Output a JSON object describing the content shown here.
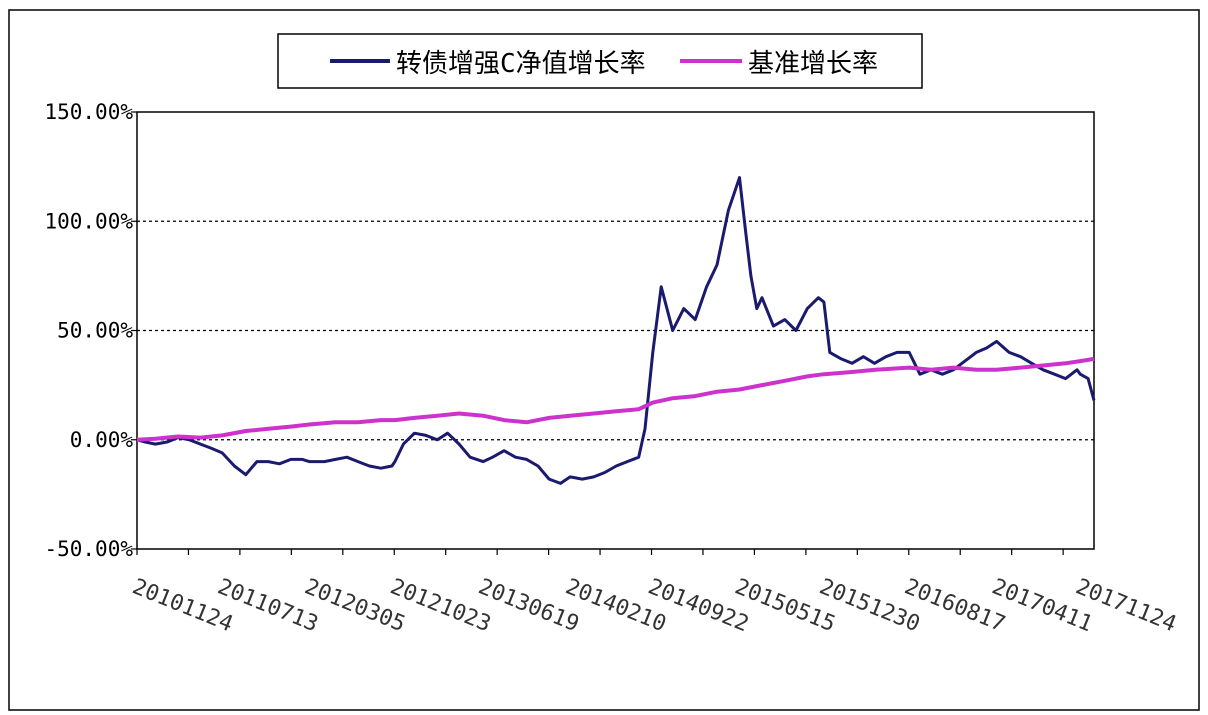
{
  "chart_data": {
    "type": "line",
    "title": "",
    "xlabel": "",
    "ylabel": "",
    "ylim": [
      -50,
      150
    ],
    "y_ticks": [
      "150.00%",
      "100.00%",
      "50.00%",
      "0.00%",
      "-50.00%"
    ],
    "y_tick_values": [
      150,
      100,
      50,
      0,
      -50
    ],
    "gridlines": [
      100,
      50,
      0
    ],
    "grid": "horizontal dotted",
    "legend_position": "top-center",
    "x_tick_labels": [
      "20101124",
      "20110713",
      "20120305",
      "20121023",
      "20130619",
      "20140210",
      "20140922",
      "20150515",
      "20151230",
      "20160817",
      "20170411",
      "20171124"
    ],
    "x_range": [
      "20101124",
      "20171231"
    ],
    "series": [
      {
        "name": "转债增强C净值增长率",
        "color": "#1a1a6e",
        "x": [
          "20101124",
          "20101215",
          "20110113",
          "20110215",
          "20110315",
          "20110415",
          "20110515",
          "20110615",
          "20110713",
          "20110815",
          "20110915",
          "20111015",
          "20111115",
          "20111215",
          "20120115",
          "20120215",
          "20120305",
          "20120415",
          "20120515",
          "20120615",
          "20120715",
          "20120815",
          "20120915",
          "20121015",
          "20121023",
          "20121115",
          "20121215",
          "20130115",
          "20130215",
          "20130315",
          "20130415",
          "20130515",
          "20130619",
          "20130715",
          "20130815",
          "20130915",
          "20131015",
          "20131115",
          "20131215",
          "20140115",
          "20140210",
          "20140315",
          "20140415",
          "20140515",
          "20140615",
          "20140715",
          "20140815",
          "20140901",
          "20140922",
          "20141015",
          "20141115",
          "20141215",
          "20150115",
          "20150215",
          "20150315",
          "20150415",
          "20150515",
          "20150601",
          "20150615",
          "20150701",
          "20150715",
          "20150815",
          "20150915",
          "20151015",
          "20151115",
          "20151215",
          "20151230",
          "20160115",
          "20160215",
          "20160315",
          "20160415",
          "20160515",
          "20160615",
          "20160715",
          "20160817",
          "20160915",
          "20161015",
          "20161115",
          "20161215",
          "20170115",
          "20170215",
          "20170315",
          "20170411",
          "20170515",
          "20170615",
          "20170715",
          "20170815",
          "20170915",
          "20171015",
          "20171115",
          "20171124",
          "20171215",
          "20171231"
        ],
        "values": [
          0,
          -1,
          -2,
          -1,
          1,
          0,
          -2,
          -4,
          -6,
          -12,
          -16,
          -10,
          -10,
          -11,
          -9,
          -9,
          -10,
          -10,
          -9,
          -8,
          -10,
          -12,
          -13,
          -12,
          -10,
          -2,
          3,
          2,
          0,
          3,
          -2,
          -8,
          -10,
          -8,
          -5,
          -8,
          -9,
          -12,
          -18,
          -20,
          -17,
          -18,
          -17,
          -15,
          -12,
          -10,
          -8,
          5,
          40,
          70,
          50,
          60,
          55,
          70,
          80,
          105,
          120,
          95,
          75,
          60,
          65,
          52,
          55,
          50,
          60,
          65,
          63,
          40,
          37,
          35,
          38,
          35,
          38,
          40,
          40,
          30,
          32,
          30,
          32,
          36,
          40,
          42,
          45,
          40,
          38,
          35,
          32,
          30,
          28,
          32,
          30,
          28,
          18
        ]
      },
      {
        "name": "基准增长率",
        "color": "#cc33cc",
        "x": [
          "20101124",
          "20110113",
          "20110315",
          "20110515",
          "20110713",
          "20110915",
          "20111115",
          "20120115",
          "20120305",
          "20120515",
          "20120715",
          "20120915",
          "20121023",
          "20121215",
          "20130215",
          "20130415",
          "20130619",
          "20130815",
          "20131015",
          "20131215",
          "20140210",
          "20140415",
          "20140615",
          "20140815",
          "20140922",
          "20141115",
          "20150115",
          "20150315",
          "20150515",
          "20150715",
          "20150915",
          "20151115",
          "20151230",
          "20160315",
          "20160517",
          "20160817",
          "20161015",
          "20161215",
          "20170215",
          "20170411",
          "20170615",
          "20170815",
          "20171015",
          "20171124",
          "20171231"
        ],
        "values": [
          0,
          0.5,
          1.5,
          1,
          2,
          4,
          5,
          6,
          7,
          8,
          8,
          9,
          9,
          10,
          11,
          12,
          11,
          9,
          8,
          10,
          11,
          12,
          13,
          14,
          17,
          19,
          20,
          22,
          23,
          25,
          27,
          29,
          30,
          31,
          32,
          33,
          32,
          33,
          32,
          32,
          33,
          34,
          35,
          36,
          37
        ]
      }
    ]
  }
}
